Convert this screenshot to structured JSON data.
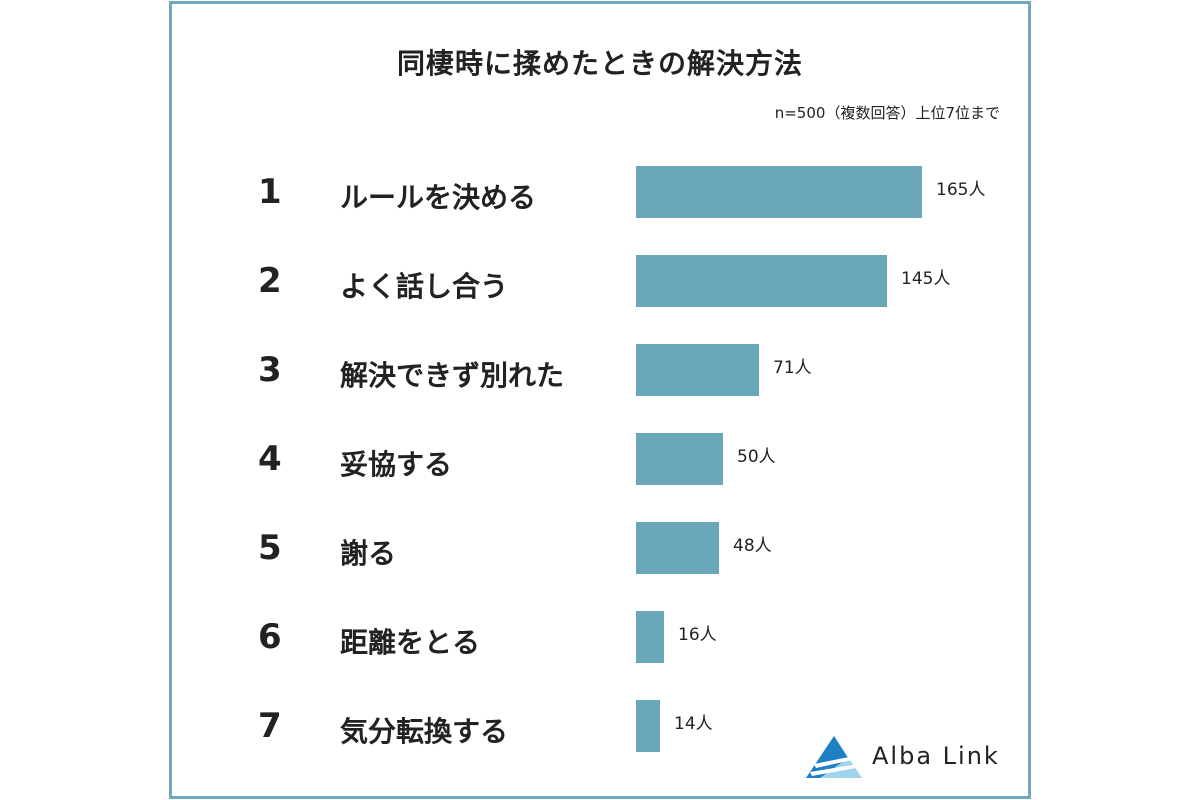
{
  "chart_data": {
    "type": "bar",
    "orientation": "horizontal",
    "title": "同棲時に揉めたときの解決方法",
    "note": "n=500（複数回答）上位7位まで",
    "ranks": [
      "1",
      "2",
      "3",
      "4",
      "5",
      "6",
      "7"
    ],
    "categories": [
      "ルールを決める",
      "よく話し合う",
      "解決できず別れた",
      "妥協する",
      "謝る",
      "距離をとる",
      "気分転換する"
    ],
    "values": [
      165,
      145,
      71,
      50,
      48,
      16,
      14
    ],
    "value_labels": [
      "165人",
      "145人",
      "71人",
      "50人",
      "48人",
      "16人",
      "14人"
    ],
    "unit": "人",
    "grid": false,
    "legend": "none",
    "bar_color": "#6ba7ba"
  },
  "colors": {
    "frame": "#6fa8ba",
    "text": "#222222",
    "logo_light": "#9fd4ec",
    "logo_dark": "#1f7fc4"
  },
  "logo": {
    "text": "Alba Link",
    "icon": "alba-link-logo-icon"
  }
}
